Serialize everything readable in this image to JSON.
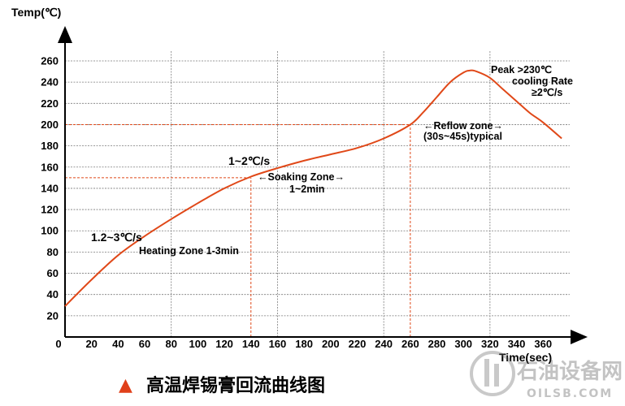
{
  "chart_data": {
    "type": "line",
    "ylabel": "Temp(℃)",
    "xlabel": "Time(sec)",
    "xlim": [
      0,
      380
    ],
    "ylim": [
      0,
      270
    ],
    "x_ticks": [
      0,
      20,
      40,
      60,
      80,
      100,
      120,
      140,
      160,
      180,
      200,
      220,
      240,
      260,
      280,
      300,
      320,
      340,
      360
    ],
    "y_ticks": [
      20,
      40,
      60,
      80,
      100,
      120,
      140,
      160,
      180,
      200,
      220,
      240,
      260
    ],
    "vertical_gridlines": [
      80,
      160,
      240,
      320
    ],
    "horizontal_gridlines": [
      20,
      40,
      60,
      80,
      100,
      120,
      140,
      160,
      180,
      200,
      220,
      240,
      260
    ],
    "reference_lines": [
      {
        "axis": "y",
        "value": 150,
        "from_x": 0,
        "to_x": 140
      },
      {
        "axis": "x",
        "value": 140,
        "from_y": 0,
        "to_y": 150
      },
      {
        "axis": "y",
        "value": 200,
        "from_x": 0,
        "to_x": 260
      },
      {
        "axis": "x",
        "value": 260,
        "from_y": 0,
        "to_y": 200
      }
    ],
    "series": [
      {
        "color": "#e04818",
        "x": [
          0,
          20,
          40,
          60,
          80,
          100,
          120,
          140,
          160,
          180,
          200,
          220,
          240,
          260,
          270,
          280,
          290,
          300,
          305,
          310,
          320,
          330,
          340,
          350,
          360,
          374
        ],
        "y": [
          29,
          54,
          77,
          95,
          111,
          126,
          140,
          151,
          159,
          166,
          172,
          178,
          187,
          200,
          212,
          226,
          240,
          249,
          251,
          250,
          244,
          233,
          222,
          211,
          202,
          187
        ]
      }
    ],
    "annotations": [
      {
        "id": "heating_rate",
        "text": "1.2~3℃/s"
      },
      {
        "id": "heating_zone",
        "text": "Heating Zone 1-3min"
      },
      {
        "id": "soak_rate",
        "text": "1~2℃/s"
      },
      {
        "id": "soak_zone",
        "text": "←Soaking Zone→"
      },
      {
        "id": "soak_time",
        "text": "1~2min"
      },
      {
        "id": "reflow_zone",
        "text": "←Reflow zone→"
      },
      {
        "id": "reflow_time",
        "text": "(30s~45s)typical"
      },
      {
        "id": "peak",
        "text": "Peak >230℃"
      },
      {
        "id": "cooling",
        "text": "cooling Rate"
      },
      {
        "id": "cooling_rate",
        "text": "≥2℃/s"
      }
    ]
  },
  "caption": {
    "marker": "▲",
    "text": "高温焊锡膏回流曲线图"
  },
  "watermark": {
    "cn": "石油设备网",
    "url": "OILSB.COM"
  },
  "colors": {
    "curve": "#e04818",
    "grid": "#7a7a7a",
    "ref": "#e04818",
    "marker": "#e0401a"
  }
}
